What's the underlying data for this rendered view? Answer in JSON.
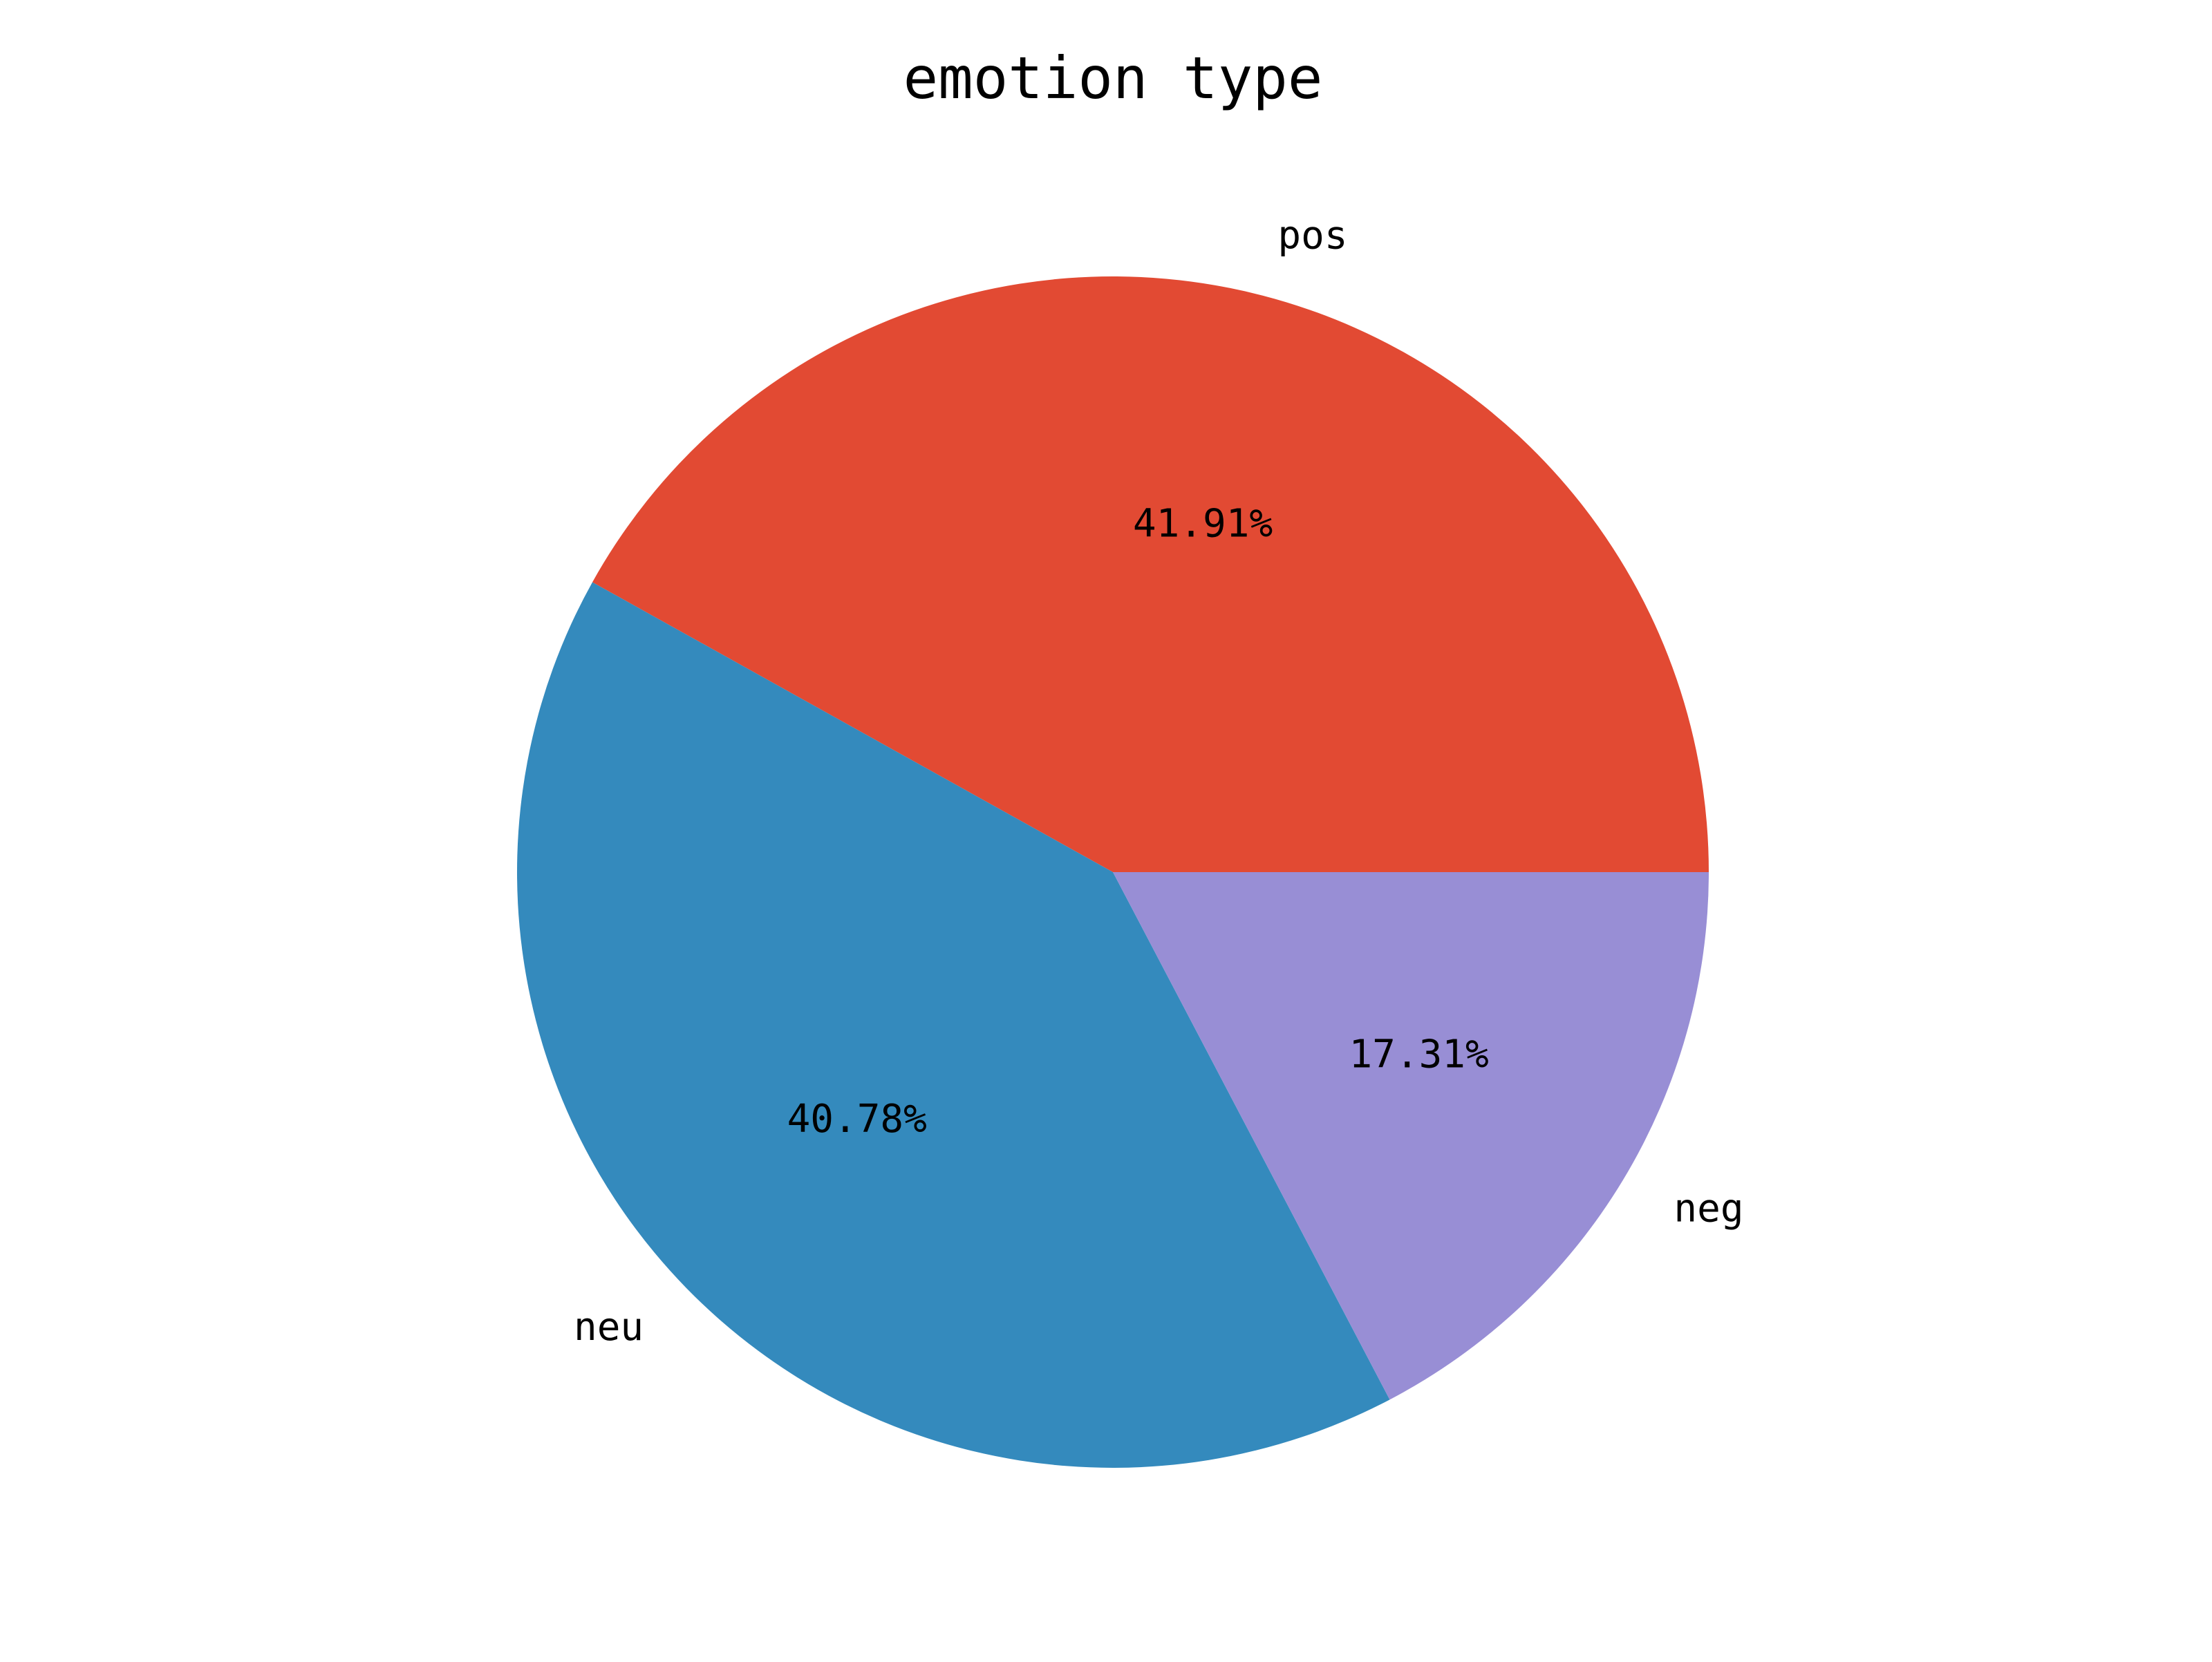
{
  "chart_data": {
    "type": "pie",
    "title": "emotion type",
    "labels": [
      "pos",
      "neu",
      "neg"
    ],
    "values": [
      41.91,
      40.78,
      17.31
    ],
    "value_labels": [
      "41.91%",
      "40.78%",
      "17.31%"
    ],
    "colors": [
      "#E24A33",
      "#348ABD",
      "#988ED5"
    ],
    "start_angle": 0,
    "direction": "counterclockwise",
    "legend": "none"
  }
}
